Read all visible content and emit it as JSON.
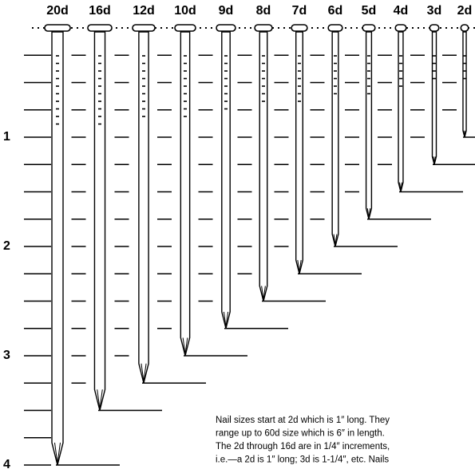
{
  "scale_labels": [
    1,
    2,
    3,
    4
  ],
  "nails": [
    {
      "label": "20d",
      "length": 4
    },
    {
      "label": "16d",
      "length": 3.5
    },
    {
      "label": "12d",
      "length": 3.25
    },
    {
      "label": "10d",
      "length": 3
    },
    {
      "label": "9d",
      "length": 2.75
    },
    {
      "label": "8d",
      "length": 2.5
    },
    {
      "label": "7d",
      "length": 2.25
    },
    {
      "label": "6d",
      "length": 2
    },
    {
      "label": "5d",
      "length": 1.75
    },
    {
      "label": "4d",
      "length": 1.5
    },
    {
      "label": "3d",
      "length": 1.25
    },
    {
      "label": "2d",
      "length": 1
    }
  ],
  "note": [
    "Nail sizes start at 2d which is 1″ long. They",
    "range up to 60d size which is 6″ in length.",
    "The 2d through 16d are in 1/4″ increments,",
    "i.e.—a 2d is 1″ long; 3d is 1-1/4″, etc. Nails"
  ]
}
